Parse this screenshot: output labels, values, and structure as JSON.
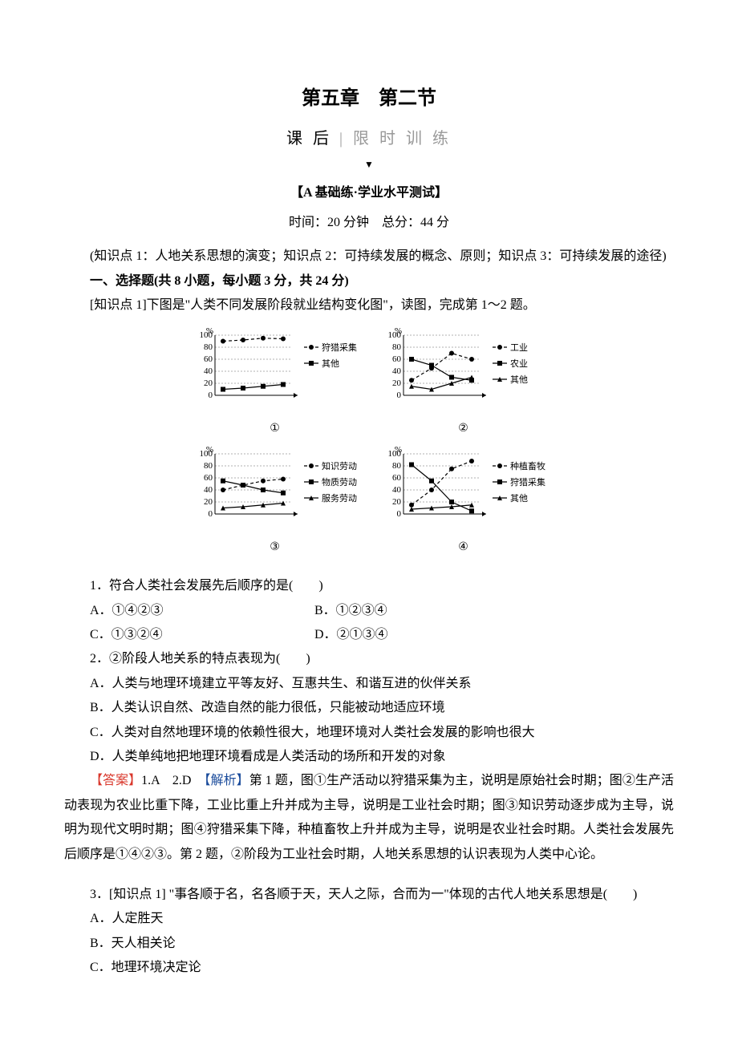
{
  "title": {
    "main": "第五章　第二节",
    "sub_left": "课 后",
    "sub_right": "限 时 训 练"
  },
  "section": {
    "test_label": "【A 基础练·学业水平测试】",
    "time_score": "时间：20 分钟　总分：44 分",
    "knowledge_points": "(知识点 1：人地关系思想的演变；知识点 2：可持续发展的概念、原则；知识点 3：可持续发展的途径)",
    "section1_header": "一、选择题(共 8 小题，每小题 3 分，共 24 分)",
    "q_intro": "[知识点 1]下图是\"人类不同发展阶段就业结构变化图\"，读图，完成第 1～2 题。"
  },
  "charts": [
    {
      "id": "①",
      "xlim": [
        0,
        4
      ],
      "ylim": [
        0,
        100
      ],
      "yticks": [
        0,
        20,
        40,
        60,
        80,
        100
      ],
      "ylabel": "%",
      "series": [
        {
          "name": "狩猎采集",
          "marker": "circle",
          "line": "dash",
          "values": [
            90,
            92,
            95,
            94
          ]
        },
        {
          "name": "其他",
          "marker": "square",
          "line": "solid",
          "values": [
            10,
            12,
            15,
            18
          ]
        }
      ],
      "legend": [
        "狩猎采集",
        "其他"
      ],
      "colors": {
        "axis": "#000",
        "grid": "#999",
        "marker": "#000"
      }
    },
    {
      "id": "②",
      "xlim": [
        0,
        4
      ],
      "ylim": [
        0,
        100
      ],
      "yticks": [
        0,
        20,
        40,
        60,
        80,
        100
      ],
      "ylabel": "%",
      "series": [
        {
          "name": "工业",
          "marker": "circle",
          "line": "dash",
          "values": [
            25,
            45,
            70,
            60
          ]
        },
        {
          "name": "农业",
          "marker": "square",
          "line": "solid",
          "values": [
            60,
            50,
            30,
            25
          ]
        },
        {
          "name": "其他",
          "marker": "triangle",
          "line": "solid",
          "values": [
            15,
            10,
            20,
            30
          ]
        }
      ],
      "legend": [
        "工业",
        "农业",
        "其他"
      ],
      "colors": {
        "axis": "#000",
        "grid": "#999",
        "marker": "#000"
      }
    },
    {
      "id": "③",
      "xlim": [
        0,
        4
      ],
      "ylim": [
        0,
        100
      ],
      "yticks": [
        0,
        20,
        40,
        60,
        80,
        100
      ],
      "ylabel": "%",
      "series": [
        {
          "name": "知识劳动",
          "marker": "circle",
          "line": "dash",
          "values": [
            40,
            48,
            55,
            58
          ]
        },
        {
          "name": "物质劳动",
          "marker": "square",
          "line": "solid",
          "values": [
            55,
            48,
            40,
            35
          ]
        },
        {
          "name": "服务劳动",
          "marker": "triangle",
          "line": "solid",
          "values": [
            10,
            12,
            15,
            18
          ]
        }
      ],
      "legend": [
        "知识劳动",
        "物质劳动",
        "服务劳动"
      ],
      "colors": {
        "axis": "#000",
        "grid": "#999",
        "marker": "#000"
      }
    },
    {
      "id": "④",
      "xlim": [
        0,
        4
      ],
      "ylim": [
        0,
        100
      ],
      "yticks": [
        0,
        20,
        40,
        60,
        80,
        100
      ],
      "ylabel": "%",
      "series": [
        {
          "name": "种植畜牧",
          "marker": "circle",
          "line": "dash",
          "values": [
            15,
            40,
            75,
            88
          ]
        },
        {
          "name": "狩猎采集",
          "marker": "square",
          "line": "solid",
          "values": [
            82,
            55,
            20,
            5
          ]
        },
        {
          "name": "其他",
          "marker": "triangle",
          "line": "solid",
          "values": [
            8,
            10,
            12,
            15
          ]
        }
      ],
      "legend": [
        "种植畜牧",
        "狩猎采集",
        "其他"
      ],
      "colors": {
        "axis": "#000",
        "grid": "#999",
        "marker": "#000"
      }
    }
  ],
  "q1": {
    "stem": "1．符合人类社会发展先后顺序的是(　　)",
    "A": "A．①④②③",
    "B": "B．①②③④",
    "C": "C．①③②④",
    "D": "D．②①③④"
  },
  "q2": {
    "stem": "2．②阶段人地关系的特点表现为(　　)",
    "A": "A．人类与地理环境建立平等友好、互惠共生、和谐互进的伙伴关系",
    "B": "B．人类认识自然、改造自然的能力很低，只能被动地适应环境",
    "C": "C．人类对自然地理环境的依赖性很大，地理环境对人类社会发展的影响也很大",
    "D": "D．人类单纯地把地理环境看成是人类活动的场所和开发的对象"
  },
  "answer12": {
    "ans_label": "【答案】",
    "ans_text": "1.A　2.D　",
    "exp_label": "【解析】",
    "exp_text": "第 1 题，图①生产活动以狩猎采集为主，说明是原始社会时期；图②生产活动表现为农业比重下降，工业比重上升并成为主导，说明是工业社会时期；图③知识劳动逐步成为主导，说明为现代文明时期；图④狩猎采集下降，种植畜牧上升并成为主导，说明是农业社会时期。人类社会发展先后顺序是①④②③。第 2 题，②阶段为工业社会时期，人地关系思想的认识表现为人类中心论。"
  },
  "q3": {
    "stem": "3．[知识点 1] \"事各顺于名，名各顺于天，天人之际，合而为一\"体现的古代人地关系思想是(　　)",
    "A": "A．人定胜天",
    "B": "B．天人相关论",
    "C": "C．地理环境决定论"
  }
}
